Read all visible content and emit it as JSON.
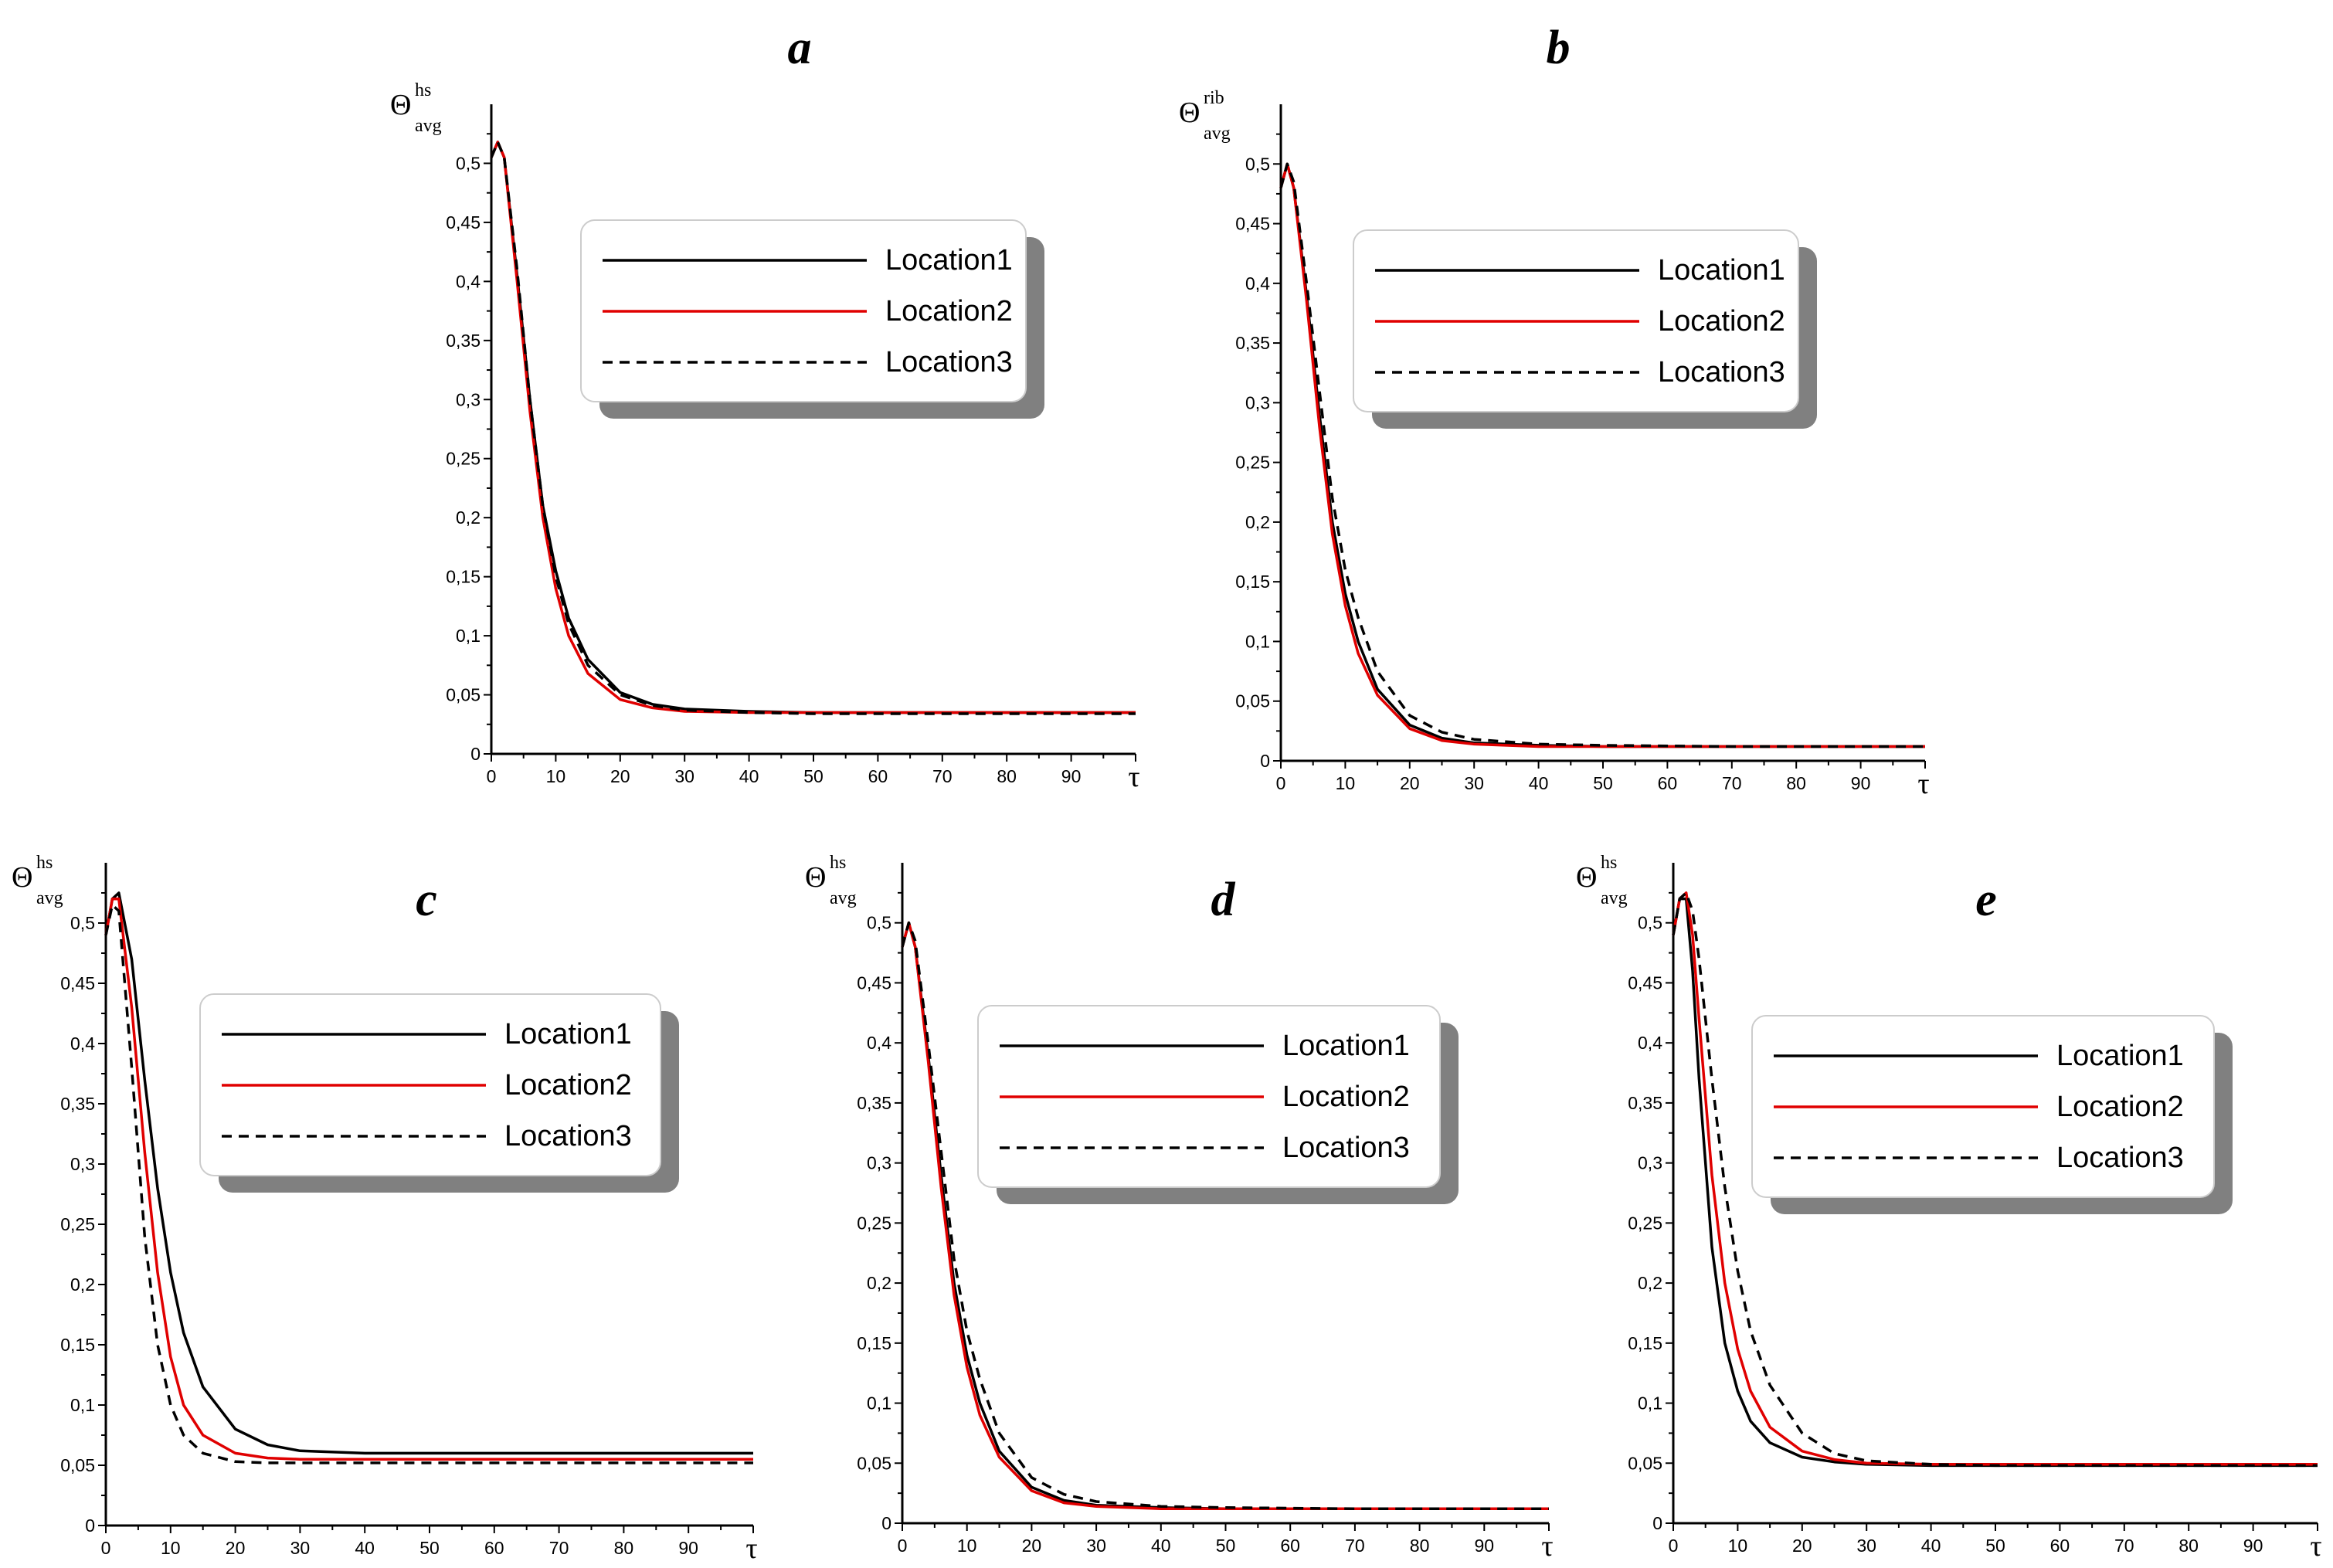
{
  "chart_data": [
    {
      "panel": "a",
      "type": "line",
      "ylabel": {
        "main": "Θ",
        "sup": "hs",
        "sub": "avg"
      },
      "xlabel": "τ",
      "xlim": [
        0,
        100
      ],
      "ylim": [
        0,
        0.55
      ],
      "xticks": [
        0,
        10,
        20,
        30,
        40,
        50,
        60,
        70,
        80,
        90
      ],
      "xtick_labels": [
        "0",
        "10",
        "20",
        "30",
        "40",
        "50",
        "60",
        "70",
        "80",
        "90"
      ],
      "yticks": [
        0,
        0.05,
        0.1,
        0.15,
        0.2,
        0.25,
        0.3,
        0.35,
        0.4,
        0.45,
        0.5
      ],
      "ytick_labels": [
        "0",
        "0,05",
        "0,1",
        "0,15",
        "0,2",
        "0,25",
        "0,3",
        "0,35",
        "0,4",
        "0,45",
        "0,5"
      ],
      "legend_position": "top-right",
      "series": [
        {
          "name": "Location1",
          "color": "#000000",
          "dash": "solid",
          "x": [
            0,
            1,
            2,
            4,
            6,
            8,
            10,
            12,
            15,
            20,
            25,
            30,
            40,
            50,
            70,
            100
          ],
          "y": [
            0.505,
            0.518,
            0.505,
            0.405,
            0.3,
            0.21,
            0.155,
            0.115,
            0.08,
            0.052,
            0.042,
            0.038,
            0.036,
            0.035,
            0.035,
            0.035
          ]
        },
        {
          "name": "Location2",
          "color": "#e00000",
          "dash": "solid",
          "x": [
            0,
            1,
            2,
            4,
            6,
            8,
            10,
            12,
            15,
            20,
            25,
            30,
            40,
            50,
            70,
            100
          ],
          "y": [
            0.505,
            0.518,
            0.505,
            0.4,
            0.29,
            0.2,
            0.14,
            0.1,
            0.068,
            0.046,
            0.039,
            0.036,
            0.035,
            0.035,
            0.035,
            0.035
          ]
        },
        {
          "name": "Location3",
          "color": "#000000",
          "dash": "dashed",
          "x": [
            0,
            1,
            2,
            4,
            6,
            8,
            10,
            12,
            15,
            20,
            25,
            30,
            40,
            50,
            70,
            100
          ],
          "y": [
            0.505,
            0.518,
            0.505,
            0.41,
            0.3,
            0.21,
            0.15,
            0.11,
            0.075,
            0.05,
            0.041,
            0.037,
            0.035,
            0.034,
            0.034,
            0.034
          ]
        }
      ]
    },
    {
      "panel": "b",
      "type": "line",
      "ylabel": {
        "main": "Θ",
        "sup": "rib",
        "sub": "avg"
      },
      "xlabel": "τ",
      "xlim": [
        0,
        100
      ],
      "ylim": [
        0,
        0.55
      ],
      "xticks": [
        0,
        10,
        20,
        30,
        40,
        50,
        60,
        70,
        80,
        90
      ],
      "xtick_labels": [
        "0",
        "10",
        "20",
        "30",
        "40",
        "50",
        "60",
        "70",
        "80",
        "90"
      ],
      "yticks": [
        0,
        0.05,
        0.1,
        0.15,
        0.2,
        0.25,
        0.3,
        0.35,
        0.4,
        0.45,
        0.5
      ],
      "ytick_labels": [
        "0",
        "0,05",
        "0,1",
        "0,15",
        "0,2",
        "0,25",
        "0,3",
        "0,35",
        "0,4",
        "0,45",
        "0,5"
      ],
      "legend_position": "top-right",
      "series": [
        {
          "name": "Location1",
          "color": "#000000",
          "dash": "solid",
          "x": [
            0,
            1,
            2,
            4,
            6,
            8,
            10,
            12,
            15,
            20,
            25,
            30,
            40,
            50,
            70,
            100
          ],
          "y": [
            0.48,
            0.5,
            0.48,
            0.39,
            0.29,
            0.2,
            0.14,
            0.1,
            0.06,
            0.03,
            0.019,
            0.015,
            0.013,
            0.012,
            0.012,
            0.012
          ]
        },
        {
          "name": "Location2",
          "color": "#e00000",
          "dash": "solid",
          "x": [
            0,
            1,
            2,
            4,
            6,
            8,
            10,
            12,
            15,
            20,
            25,
            30,
            40,
            50,
            70,
            100
          ],
          "y": [
            0.48,
            0.5,
            0.48,
            0.385,
            0.28,
            0.19,
            0.13,
            0.09,
            0.055,
            0.027,
            0.017,
            0.014,
            0.012,
            0.012,
            0.012,
            0.012
          ]
        },
        {
          "name": "Location3",
          "color": "#000000",
          "dash": "dashed",
          "x": [
            0,
            1,
            2,
            4,
            6,
            8,
            10,
            12,
            15,
            20,
            25,
            30,
            40,
            50,
            70,
            100
          ],
          "y": [
            0.48,
            0.5,
            0.485,
            0.4,
            0.31,
            0.22,
            0.16,
            0.12,
            0.075,
            0.038,
            0.024,
            0.018,
            0.014,
            0.013,
            0.012,
            0.012
          ]
        }
      ]
    },
    {
      "panel": "c",
      "type": "line",
      "ylabel": {
        "main": "Θ",
        "sup": "hs",
        "sub": "avg"
      },
      "xlabel": "τ",
      "xlim": [
        0,
        100
      ],
      "ylim": [
        0,
        0.55
      ],
      "xticks": [
        0,
        10,
        20,
        30,
        40,
        50,
        60,
        70,
        80,
        90
      ],
      "xtick_labels": [
        "0",
        "10",
        "20",
        "30",
        "40",
        "50",
        "60",
        "70",
        "80",
        "90"
      ],
      "yticks": [
        0,
        0.05,
        0.1,
        0.15,
        0.2,
        0.25,
        0.3,
        0.35,
        0.4,
        0.45,
        0.5
      ],
      "ytick_labels": [
        "0",
        "0,05",
        "0,1",
        "0,15",
        "0,2",
        "0,25",
        "0,3",
        "0,35",
        "0,4",
        "0,45",
        "0,5"
      ],
      "legend_position": "top-right",
      "series": [
        {
          "name": "Location1",
          "color": "#000000",
          "dash": "solid",
          "x": [
            0,
            1,
            2,
            4,
            6,
            8,
            10,
            12,
            15,
            20,
            25,
            30,
            40,
            50,
            70,
            100
          ],
          "y": [
            0.49,
            0.52,
            0.525,
            0.47,
            0.37,
            0.28,
            0.21,
            0.16,
            0.115,
            0.08,
            0.067,
            0.062,
            0.06,
            0.06,
            0.06,
            0.06
          ]
        },
        {
          "name": "Location2",
          "color": "#e00000",
          "dash": "solid",
          "x": [
            0,
            1,
            2,
            4,
            6,
            8,
            10,
            12,
            15,
            20,
            25,
            30,
            40,
            50,
            70,
            100
          ],
          "y": [
            0.49,
            0.52,
            0.52,
            0.43,
            0.31,
            0.21,
            0.14,
            0.1,
            0.075,
            0.06,
            0.056,
            0.055,
            0.055,
            0.055,
            0.055,
            0.055
          ]
        },
        {
          "name": "Location3",
          "color": "#000000",
          "dash": "dashed",
          "x": [
            0,
            1,
            2,
            4,
            6,
            8,
            10,
            12,
            15,
            20,
            25,
            30,
            40,
            50,
            70,
            100
          ],
          "y": [
            0.49,
            0.515,
            0.51,
            0.38,
            0.24,
            0.15,
            0.1,
            0.075,
            0.06,
            0.053,
            0.052,
            0.052,
            0.052,
            0.052,
            0.052,
            0.052
          ]
        }
      ]
    },
    {
      "panel": "d",
      "type": "line",
      "ylabel": {
        "main": "Θ",
        "sup": "hs",
        "sub": "avg"
      },
      "xlabel": "τ",
      "xlim": [
        0,
        100
      ],
      "ylim": [
        0,
        0.55
      ],
      "xticks": [
        0,
        10,
        20,
        30,
        40,
        50,
        60,
        70,
        80,
        90
      ],
      "xtick_labels": [
        "0",
        "10",
        "20",
        "30",
        "40",
        "50",
        "60",
        "70",
        "80",
        "90"
      ],
      "yticks": [
        0,
        0.05,
        0.1,
        0.15,
        0.2,
        0.25,
        0.3,
        0.35,
        0.4,
        0.45,
        0.5
      ],
      "ytick_labels": [
        "0",
        "0,05",
        "0,1",
        "0,15",
        "0,2",
        "0,25",
        "0,3",
        "0,35",
        "0,4",
        "0,45",
        "0,5"
      ],
      "legend_position": "top-right",
      "series": [
        {
          "name": "Location1",
          "color": "#000000",
          "dash": "solid",
          "x": [
            0,
            1,
            2,
            4,
            6,
            8,
            10,
            12,
            15,
            20,
            25,
            30,
            40,
            50,
            70,
            100
          ],
          "y": [
            0.48,
            0.5,
            0.48,
            0.39,
            0.29,
            0.2,
            0.14,
            0.1,
            0.06,
            0.03,
            0.019,
            0.015,
            0.013,
            0.012,
            0.012,
            0.012
          ]
        },
        {
          "name": "Location2",
          "color": "#e00000",
          "dash": "solid",
          "x": [
            0,
            1,
            2,
            4,
            6,
            8,
            10,
            12,
            15,
            20,
            25,
            30,
            40,
            50,
            70,
            100
          ],
          "y": [
            0.48,
            0.5,
            0.48,
            0.385,
            0.28,
            0.19,
            0.13,
            0.09,
            0.055,
            0.027,
            0.017,
            0.014,
            0.012,
            0.012,
            0.012,
            0.012
          ]
        },
        {
          "name": "Location3",
          "color": "#000000",
          "dash": "dashed",
          "x": [
            0,
            1,
            2,
            4,
            6,
            8,
            10,
            12,
            15,
            20,
            25,
            30,
            40,
            50,
            70,
            100
          ],
          "y": [
            0.48,
            0.5,
            0.485,
            0.4,
            0.31,
            0.22,
            0.16,
            0.12,
            0.075,
            0.038,
            0.024,
            0.018,
            0.014,
            0.013,
            0.012,
            0.012
          ]
        }
      ]
    },
    {
      "panel": "e",
      "type": "line",
      "ylabel": {
        "main": "Θ",
        "sup": "hs",
        "sub": "avg"
      },
      "xlabel": "τ",
      "xlim": [
        0,
        100
      ],
      "ylim": [
        0,
        0.55
      ],
      "xticks": [
        0,
        10,
        20,
        30,
        40,
        50,
        60,
        70,
        80,
        90
      ],
      "xtick_labels": [
        "0",
        "10",
        "20",
        "30",
        "40",
        "50",
        "60",
        "70",
        "80",
        "90"
      ],
      "yticks": [
        0,
        0.05,
        0.1,
        0.15,
        0.2,
        0.25,
        0.3,
        0.35,
        0.4,
        0.45,
        0.5
      ],
      "ytick_labels": [
        "0",
        "0,05",
        "0,1",
        "0,15",
        "0,2",
        "0,25",
        "0,3",
        "0,35",
        "0,4",
        "0,45",
        "0,5"
      ],
      "legend_position": "top-right",
      "series": [
        {
          "name": "Location1",
          "color": "#000000",
          "dash": "solid",
          "x": [
            0,
            1,
            2,
            3,
            4,
            6,
            8,
            10,
            12,
            15,
            20,
            25,
            30,
            40,
            50,
            70,
            100
          ],
          "y": [
            0.49,
            0.52,
            0.52,
            0.46,
            0.37,
            0.23,
            0.15,
            0.11,
            0.085,
            0.067,
            0.055,
            0.051,
            0.049,
            0.048,
            0.048,
            0.048,
            0.048
          ]
        },
        {
          "name": "Location2",
          "color": "#e00000",
          "dash": "solid",
          "x": [
            0,
            1,
            2,
            3,
            4,
            6,
            8,
            10,
            12,
            15,
            20,
            25,
            30,
            40,
            50,
            70,
            100
          ],
          "y": [
            0.49,
            0.52,
            0.525,
            0.49,
            0.42,
            0.29,
            0.2,
            0.145,
            0.11,
            0.08,
            0.06,
            0.053,
            0.05,
            0.049,
            0.049,
            0.049,
            0.049
          ]
        },
        {
          "name": "Location3",
          "color": "#000000",
          "dash": "dashed",
          "x": [
            0,
            1,
            2,
            3,
            4,
            6,
            8,
            10,
            12,
            15,
            20,
            25,
            30,
            40,
            50,
            70,
            100
          ],
          "y": [
            0.49,
            0.52,
            0.525,
            0.51,
            0.47,
            0.37,
            0.28,
            0.21,
            0.16,
            0.115,
            0.075,
            0.058,
            0.052,
            0.049,
            0.048,
            0.048,
            0.048
          ]
        }
      ]
    }
  ]
}
